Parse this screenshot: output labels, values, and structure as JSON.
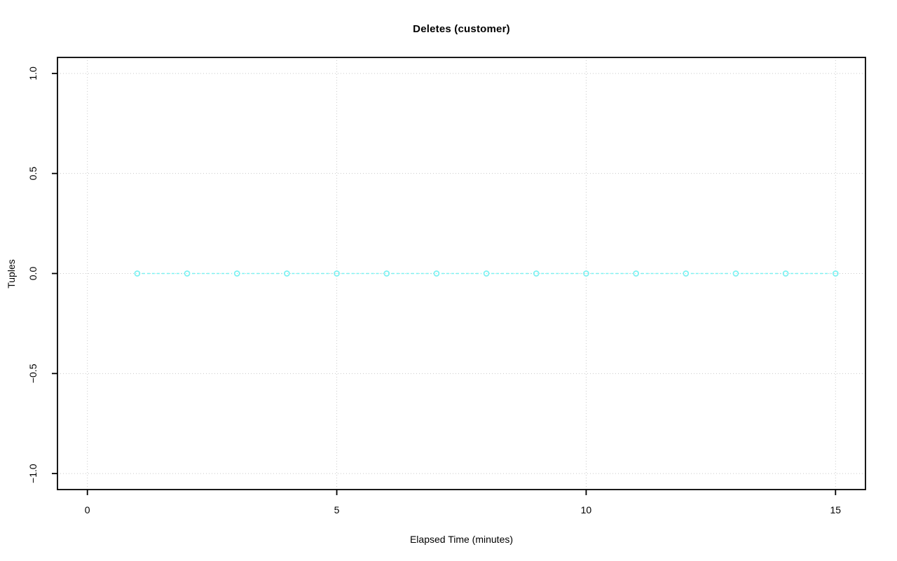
{
  "chart_data": {
    "type": "line",
    "title": "Deletes (customer)",
    "xlabel": "Elapsed Time (minutes)",
    "ylabel": "Tuples",
    "x": [
      1,
      2,
      3,
      4,
      5,
      6,
      7,
      8,
      9,
      10,
      11,
      12,
      13,
      14,
      15
    ],
    "y": [
      0,
      0,
      0,
      0,
      0,
      0,
      0,
      0,
      0,
      0,
      0,
      0,
      0,
      0,
      0
    ],
    "series": [
      {
        "name": "Deletes (customer)",
        "values": [
          0,
          0,
          0,
          0,
          0,
          0,
          0,
          0,
          0,
          0,
          0,
          0,
          0,
          0,
          0
        ]
      }
    ],
    "xlim": [
      -0.6,
      15.6
    ],
    "ylim": [
      -1.08,
      1.08
    ],
    "xtick_values": [
      0,
      5,
      10,
      15
    ],
    "xtick_labels": [
      "0",
      "5",
      "10",
      "15"
    ],
    "ytick_values": [
      -1,
      -0.5,
      0,
      0.5,
      1
    ],
    "ytick_labels": [
      "−1.0",
      "−0.5",
      "0.0",
      "0.5",
      "1.0"
    ],
    "grid": true,
    "legend_position": "none",
    "marker": "open-circle",
    "line_style": "dashed",
    "grid_style": "dotted",
    "colors": {
      "series": "#7df2f2",
      "grid": "#c9c9c9",
      "axis": "#000000",
      "background": "#ffffff"
    }
  }
}
